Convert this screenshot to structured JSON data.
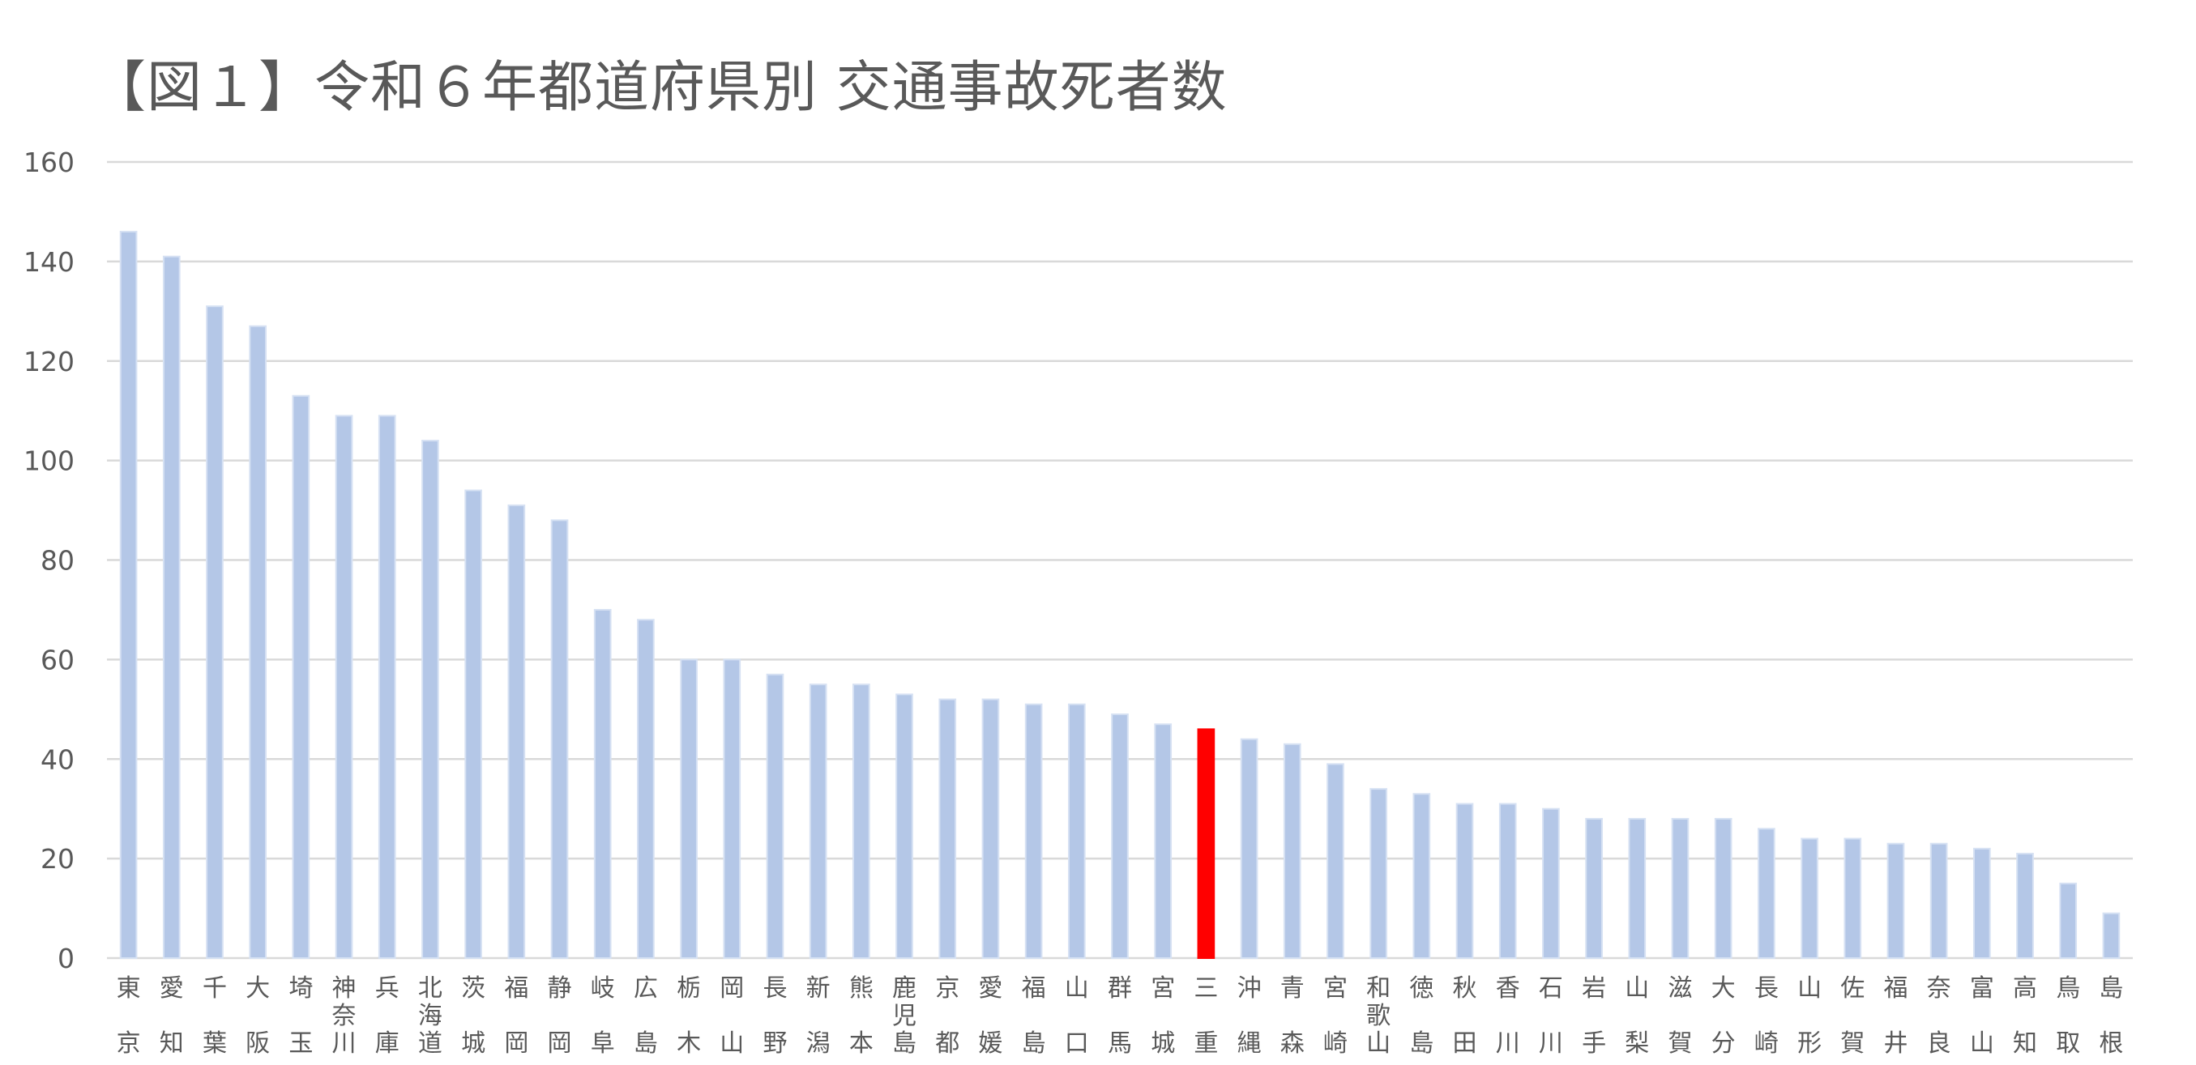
{
  "chart_data": {
    "type": "bar",
    "title": "【図１】令和６年都道府県別 交通事故死者数",
    "xlabel": "",
    "ylabel": "",
    "ylim": [
      0,
      160
    ],
    "yticks": [
      0,
      20,
      40,
      60,
      80,
      100,
      120,
      140,
      160
    ],
    "grid": true,
    "legend": "none",
    "categories": [
      "東京",
      "愛知",
      "千葉",
      "大阪",
      "埼玉",
      "神奈川",
      "兵庫",
      "北海道",
      "茨城",
      "福岡",
      "静岡",
      "岐阜",
      "広島",
      "栃木",
      "岡山",
      "長野",
      "新潟",
      "熊本",
      "鹿児島",
      "京都",
      "愛媛",
      "福島",
      "山口",
      "群馬",
      "宮城",
      "三重",
      "沖縄",
      "青森",
      "宮崎",
      "和歌山",
      "徳島",
      "秋田",
      "香川",
      "石川",
      "岩手",
      "山梨",
      "滋賀",
      "大分",
      "長崎",
      "山形",
      "佐賀",
      "福井",
      "奈良",
      "富山",
      "高知",
      "鳥取",
      "島根"
    ],
    "values": [
      146,
      141,
      131,
      127,
      113,
      109,
      109,
      104,
      94,
      91,
      88,
      70,
      68,
      60,
      60,
      57,
      55,
      55,
      53,
      52,
      52,
      51,
      51,
      49,
      47,
      46,
      44,
      43,
      39,
      34,
      33,
      31,
      31,
      30,
      28,
      28,
      28,
      28,
      26,
      24,
      24,
      23,
      23,
      22,
      21,
      15,
      9
    ],
    "highlight": "三重",
    "colors": {
      "bar": "#b4c7e7",
      "bar_edge": "#d6e1f3",
      "highlight": "#ff0000"
    }
  }
}
